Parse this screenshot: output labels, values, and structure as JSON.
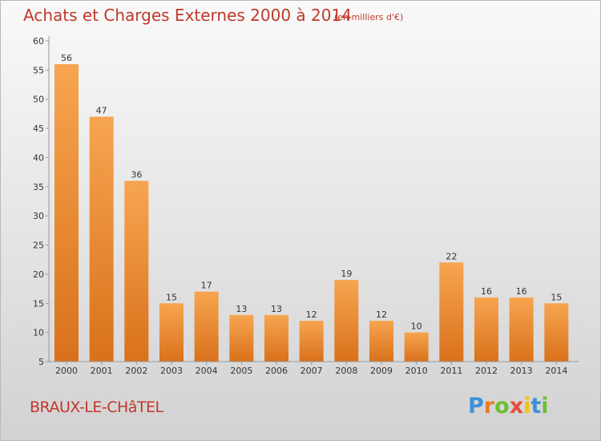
{
  "header": {
    "title": "Achats et Charges Externes 2000 à 2014",
    "subtitle": "(en milliers d'€)"
  },
  "footer": {
    "commune": "BRAUX-LE-CHâTEL",
    "logo": "Proxiti"
  },
  "colors": {
    "title": "#c0392b",
    "bar_light": "#f7a550",
    "bar_dark": "#d9711b",
    "axis": "#999999"
  },
  "chart_data": {
    "type": "bar",
    "title": "Achats et Charges Externes 2000 à 2014",
    "subtitle": "(en milliers d'€)",
    "categories": [
      "2000",
      "2001",
      "2002",
      "2003",
      "2004",
      "2005",
      "2006",
      "2007",
      "2008",
      "2009",
      "2010",
      "2011",
      "2012",
      "2013",
      "2014"
    ],
    "values": [
      56,
      47,
      36,
      15,
      17,
      13,
      13,
      12,
      19,
      12,
      10,
      22,
      16,
      16,
      15
    ],
    "ylim": [
      5,
      60
    ],
    "yticks": [
      5,
      10,
      15,
      20,
      25,
      30,
      35,
      40,
      45,
      50,
      55,
      60
    ],
    "grid": false,
    "data_labels": true
  }
}
